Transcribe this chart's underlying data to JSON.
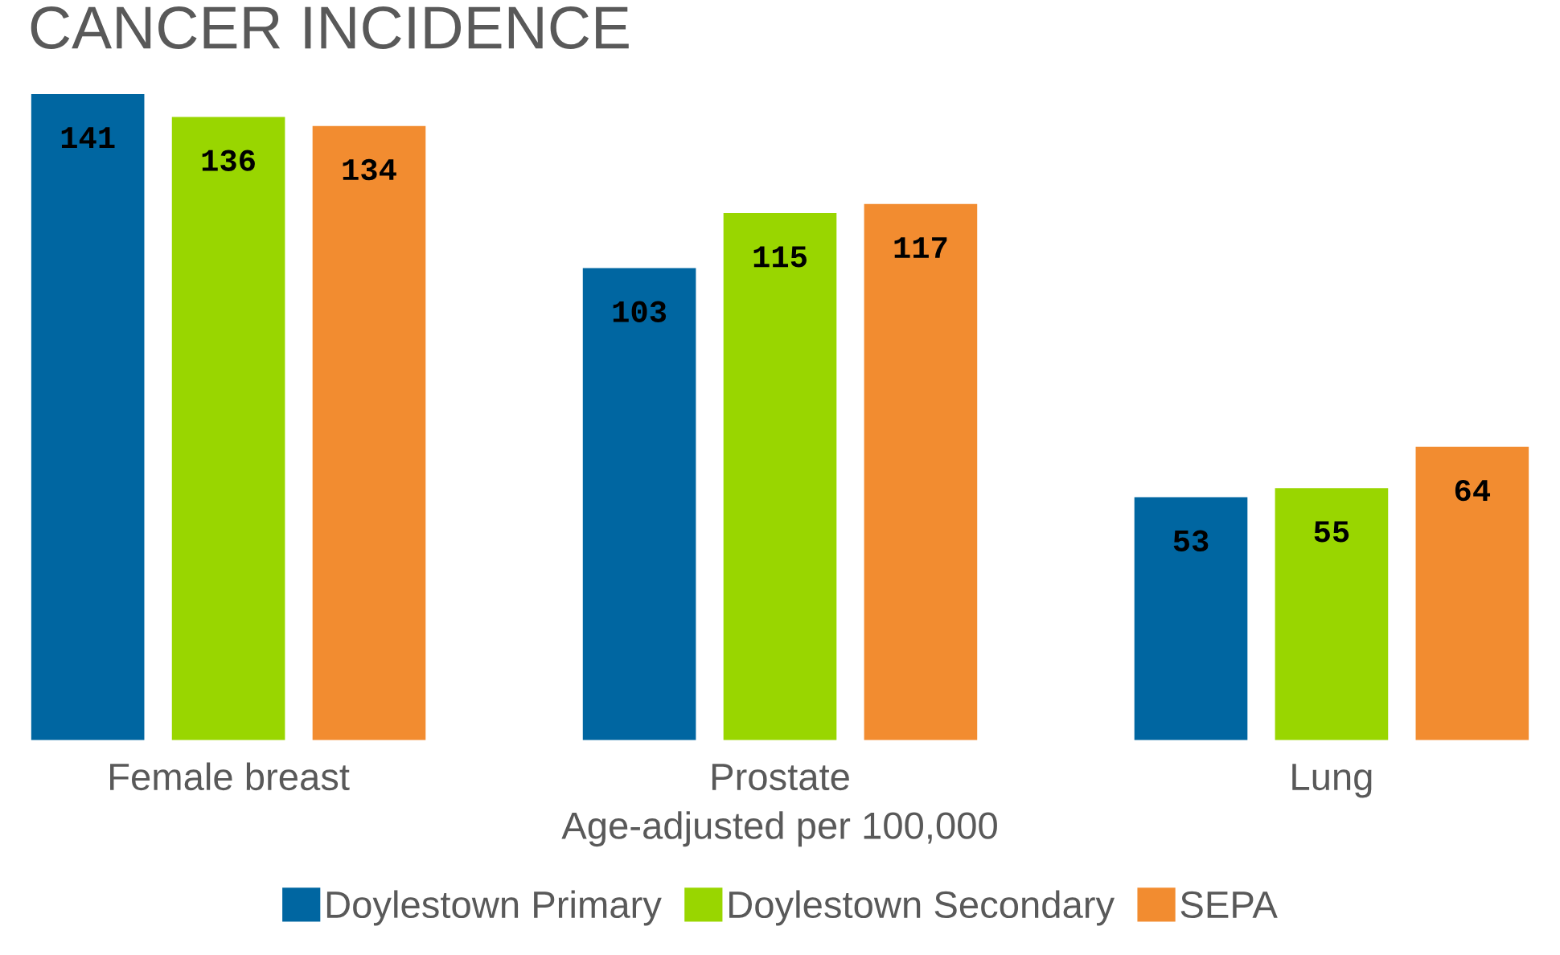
{
  "chart_data": {
    "type": "bar",
    "title": "CANCER INCIDENCE",
    "xlabel": "Age-adjusted per 100,000",
    "categories": [
      "Female breast",
      "Prostate",
      "Lung"
    ],
    "series": [
      {
        "name": "Doylestown Primary",
        "color": "#0066a1",
        "values": [
          141,
          103,
          53
        ]
      },
      {
        "name": "Doylestown Secondary",
        "color": "#99d600",
        "values": [
          136,
          115,
          55
        ]
      },
      {
        "name": "SEPA",
        "color": "#f28c30",
        "values": [
          134,
          117,
          64
        ]
      }
    ],
    "data_labels": true,
    "grid": false,
    "legend": "bottom"
  }
}
